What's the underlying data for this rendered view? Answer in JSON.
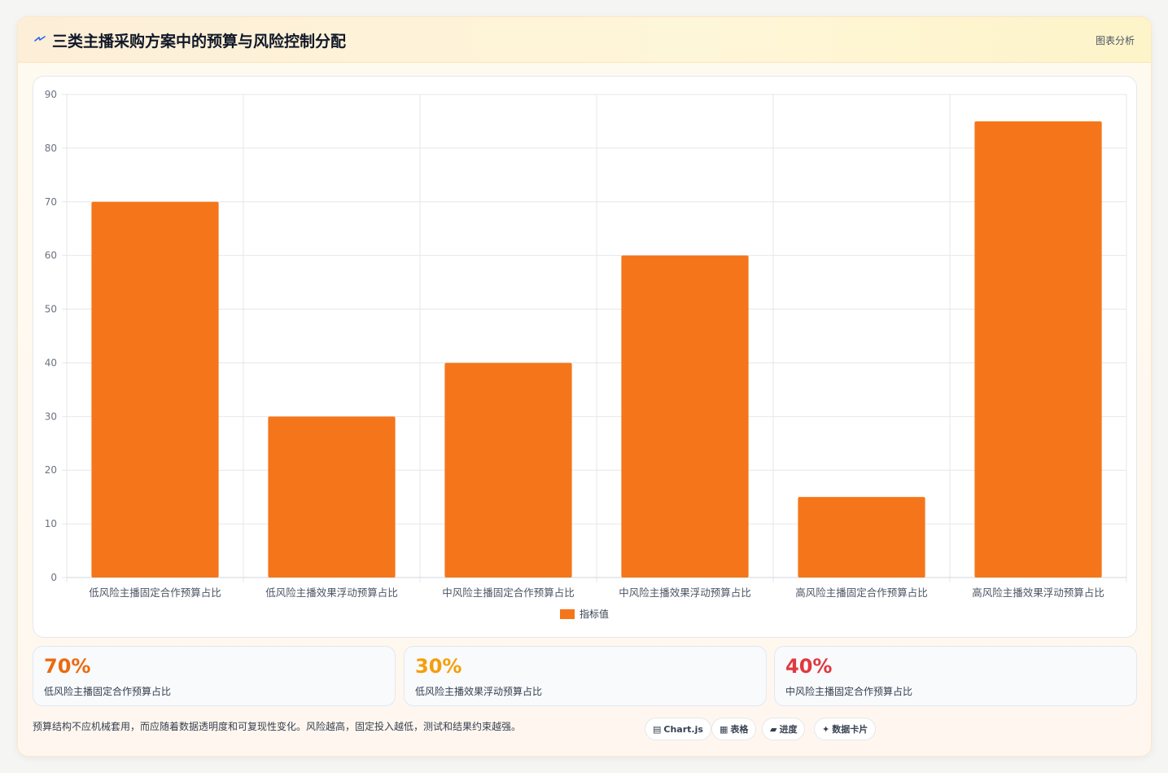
{
  "header": {
    "title": "三类主播采购方案中的预算与风险控制分配",
    "tag": "图表分析",
    "icon": "bolt-icon"
  },
  "chart_data": {
    "type": "bar",
    "categories": [
      "低风险主播固定合作预算占比",
      "低风险主播效果浮动预算占比",
      "中风险主播固定合作预算占比",
      "中风险主播效果浮动预算占比",
      "高风险主播固定合作预算占比",
      "高风险主播效果浮动预算占比"
    ],
    "series": [
      {
        "name": "指标值",
        "values": [
          70,
          30,
          40,
          60,
          15,
          85
        ],
        "color": "#f5761a"
      }
    ],
    "ylim": [
      0,
      90
    ],
    "yticks": [
      0,
      10,
      20,
      30,
      40,
      50,
      60,
      70,
      80,
      90
    ],
    "grid": true,
    "legend": "bottom"
  },
  "stats": [
    {
      "value": "70%",
      "label": "低风险主播固定合作预算占比",
      "color": "#ea6a10"
    },
    {
      "value": "30%",
      "label": "低风险主播效果浮动预算占比",
      "color": "#f59e0b"
    },
    {
      "value": "40%",
      "label": "中风险主播固定合作预算占比",
      "color": "#e0393e"
    }
  ],
  "footer": {
    "note": "预算结构不应机械套用，而应随着数据透明度和可复现性变化。风险越高，固定投入越低，测试和结果约束越强。",
    "pills": [
      {
        "icon": "▤",
        "label": "Chart.js"
      },
      {
        "icon": "▦",
        "label": "表格"
      },
      {
        "icon": "▰",
        "label": "进度"
      },
      {
        "icon": "✦",
        "label": "数据卡片"
      }
    ]
  }
}
